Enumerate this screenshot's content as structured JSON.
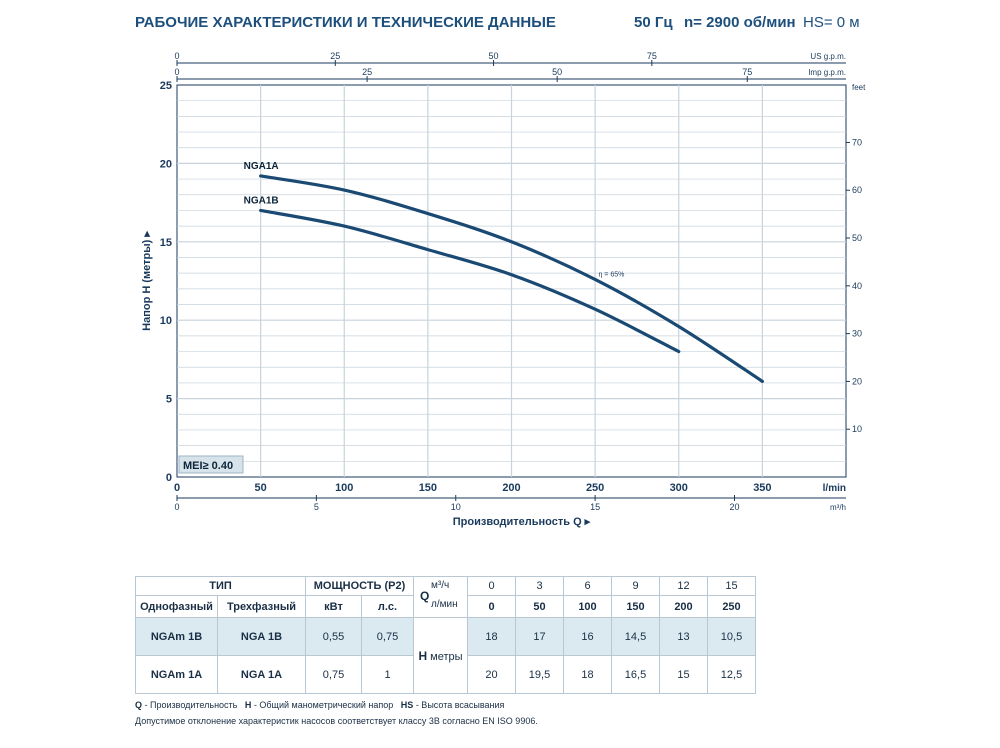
{
  "header": {
    "title": "РАБОЧИЕ ХАРАКТЕРИСТИКИ И ТЕХНИЧЕСКИЕ ДАННЫЕ",
    "freq": "50 Гц",
    "speed": "n= 2900 об/мин",
    "hs": "HS= 0 м"
  },
  "colors": {
    "curve": "#1a4a73",
    "grid": "#c8d3dc",
    "axis": "#1a3a5c",
    "highlight": "#dbeaf0",
    "mei_bg": "#d7e3ea"
  },
  "chart_data": {
    "type": "line",
    "title": "РАБОЧИЕ ХАРАКТЕРИСТИКИ И ТЕХНИЧЕСКИЕ ДАННЫЕ",
    "xlabel": "Производительность Q",
    "ylabel": "Напор H (метры)",
    "xlim": [
      0,
      400
    ],
    "ylim": [
      0,
      25
    ],
    "x_unit": "l/min",
    "x_ticks": [
      0,
      50,
      100,
      150,
      200,
      250,
      300,
      350
    ],
    "y_ticks": [
      0,
      5,
      10,
      15,
      20,
      25
    ],
    "y_unit_right": "feet",
    "right_axis_ticks": [
      10,
      20,
      30,
      40,
      50,
      60,
      70
    ],
    "top_axis_usgpm": {
      "unit": "US g.p.m.",
      "ticks": [
        0,
        25,
        50,
        75
      ]
    },
    "top_axis_impgpm": {
      "unit": "Imp g.p.m.",
      "ticks": [
        0,
        25,
        50,
        75
      ]
    },
    "bottom_axis_m3h": {
      "unit": "m³/h",
      "ticks": [
        0,
        5,
        10,
        15,
        20
      ]
    },
    "series": [
      {
        "name": "NGA1A",
        "x": [
          50,
          100,
          150,
          200,
          250,
          300,
          350
        ],
        "values": [
          19.2,
          18.3,
          16.8,
          15.0,
          12.6,
          9.6,
          6.1
        ]
      },
      {
        "name": "NGA1B",
        "x": [
          50,
          100,
          150,
          200,
          250,
          300
        ],
        "values": [
          17.0,
          16.0,
          14.5,
          12.9,
          10.7,
          8.0
        ]
      }
    ],
    "annotations": [
      {
        "text": "η = 65%",
        "x": 252,
        "y": 12.8
      }
    ],
    "badge": "MEI≥ 0.40"
  },
  "table": {
    "header1": {
      "type": "ТИП",
      "power": "МОЩНОСТЬ (P2)",
      "q": "Q",
      "q_unit1": "м³/ч",
      "q_unit2": "л/мин"
    },
    "header2": {
      "single": "Однофазный",
      "three": "Трехфазный",
      "kw": "кВт",
      "hp": "л.с."
    },
    "q_m3h": [
      "0",
      "3",
      "6",
      "9",
      "12",
      "15"
    ],
    "q_lmin": [
      "0",
      "50",
      "100",
      "150",
      "200",
      "250"
    ],
    "h_label": "H",
    "h_unit": "метры",
    "rows": [
      {
        "single": "NGAm 1B",
        "three": "NGA 1B",
        "kw": "0,55",
        "hp": "0,75",
        "h": [
          "18",
          "17",
          "16",
          "14,5",
          "13",
          "10,5"
        ]
      },
      {
        "single": "NGAm 1A",
        "three": "NGA 1A",
        "kw": "0,75",
        "hp": "1",
        "h": [
          "20",
          "19,5",
          "18",
          "16,5",
          "15",
          "12,5"
        ]
      }
    ]
  },
  "footer": {
    "legend_q": "Q",
    "legend_q_text": " - Производительность",
    "legend_h": "H",
    "legend_h_text": " - Общий манометрический напор",
    "legend_hs": "HS",
    "legend_hs_text": " - Высота всасывания",
    "note": "Допустимое отклонение характеристик насосов соответствует классу 3В согласно EN ISO 9906."
  }
}
